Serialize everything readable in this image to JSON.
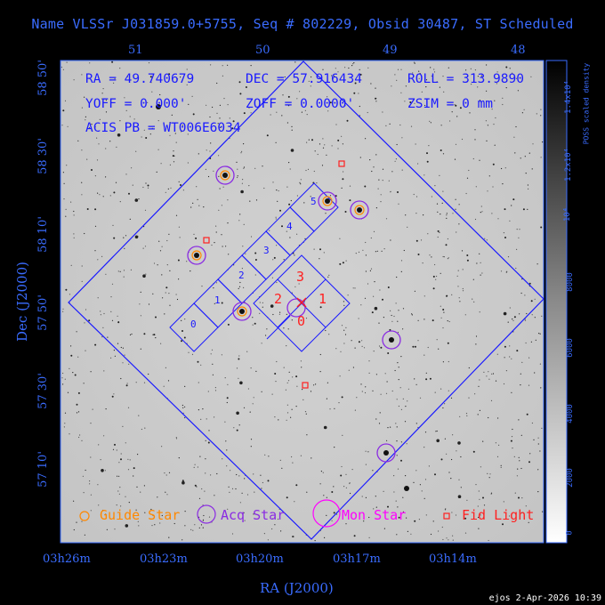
{
  "title": "Name VLSSr J031859.0+5755, Seq # 802229, Obsid 30487, ST Scheduled",
  "info": {
    "ra": "RA = 49.740679",
    "dec": "DEC = 57.916434",
    "roll": "ROLL = 313.9890",
    "yoff": "YOFF =  0.000'",
    "zoff": "ZOFF =  0.0000'",
    "zsim": "ZSIM = 0 mm",
    "acis": "ACIS PB = WT006E6034"
  },
  "top_ticks": [
    "51",
    "50",
    "49",
    "48"
  ],
  "bottom_ticks": [
    "03h26m",
    "03h23m",
    "03h20m",
    "03h17m",
    "03h14m"
  ],
  "left_ticks": [
    "58 50'",
    "58 30'",
    "58 10'",
    "57 50'",
    "57 30'",
    "57 10'"
  ],
  "x_axis_label": "RA (J2000)",
  "y_axis_label": "Dec (J2000)",
  "colorbar": {
    "label": "POSS scaled density",
    "ticks": [
      "1.4x10⁴",
      "1.2x10⁴",
      "10⁴",
      "8000",
      "6000",
      "4000",
      "2000",
      "0"
    ]
  },
  "ccd_labels": [
    "0",
    "1",
    "2",
    "3",
    "4",
    "5"
  ],
  "aimpoint_labels": [
    "3",
    "2",
    "1",
    "0"
  ],
  "legend": {
    "guide": "Guide Star",
    "acq": "Acq Star",
    "mon": "Mon Star",
    "fid": "Fid Light"
  },
  "colors": {
    "background": "#000000",
    "axis": "#3a6cff",
    "overlay": "#1a1aff",
    "guide": "#ff8800",
    "acq": "#8a2be2",
    "mon": "#ff00ff",
    "fid": "#ff2020"
  },
  "footer": "ejos  2-Apr-2026 10:39"
}
